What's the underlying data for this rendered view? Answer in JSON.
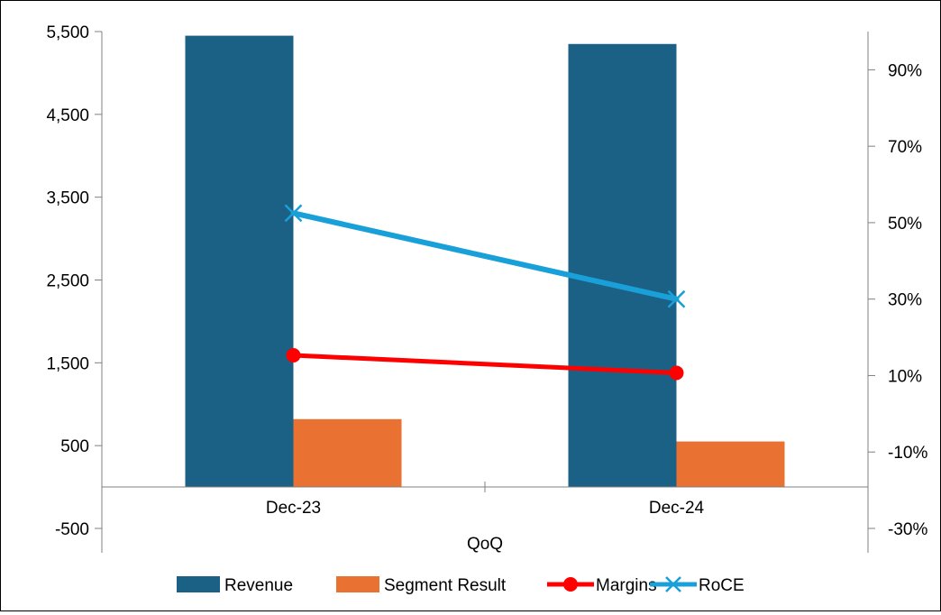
{
  "chart_data": {
    "type": "bar",
    "categories": [
      "Dec-23",
      "Dec-24"
    ],
    "category_group_label": "QoQ",
    "y_left": {
      "min": -500,
      "max": 5500,
      "ticks": [
        -500,
        500,
        1500,
        2500,
        3500,
        4500,
        5500
      ],
      "tick_labels": [
        "-500",
        "500",
        "1,500",
        "2,500",
        "3,500",
        "4,500",
        "5,500"
      ]
    },
    "y_right": {
      "min": -30,
      "max": 100,
      "ticks": [
        -30,
        -10,
        10,
        30,
        50,
        70,
        90
      ],
      "tick_labels": [
        "-30%",
        "-10%",
        "10%",
        "30%",
        "50%",
        "70%",
        "90%"
      ]
    },
    "grid": false,
    "legend_position": "bottom",
    "series": [
      {
        "name": "Revenue",
        "kind": "bar",
        "axis": "left",
        "values": [
          5450,
          5350
        ],
        "color": "#1b6185"
      },
      {
        "name": "Segment Result",
        "kind": "bar",
        "axis": "left",
        "values": [
          820,
          550
        ],
        "color": "#e97132"
      },
      {
        "name": "Margins",
        "kind": "line",
        "axis": "right",
        "marker": "circle",
        "values": [
          15.3,
          10.7
        ],
        "color": "#ff0000"
      },
      {
        "name": "RoCE",
        "kind": "line",
        "axis": "right",
        "marker": "x",
        "values": [
          52.5,
          30
        ],
        "color": "#1aa0d8"
      }
    ]
  }
}
